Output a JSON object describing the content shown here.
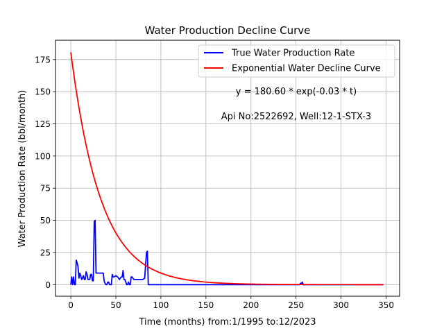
{
  "chart_data": {
    "type": "line",
    "title": "Water Production Decline Curve",
    "xlabel": "Time (months) from:1/1995 to:12/2023",
    "ylabel": "Water Production Rate (bbl/month)",
    "xlim": [
      -17,
      365
    ],
    "ylim": [
      -9,
      190
    ],
    "xticks": [
      0,
      50,
      100,
      150,
      200,
      250,
      300,
      350
    ],
    "yticks": [
      0,
      25,
      50,
      75,
      100,
      125,
      150,
      175
    ],
    "grid": true,
    "legend_position": "top-right",
    "annotations": [
      "y = 180.60 * exp(-0.03 * t)",
      "Api No:2522692, Well:12-1-STX-3"
    ],
    "series": [
      {
        "name": "True Water Production Rate",
        "color": "#0000ff",
        "x": [
          0,
          1,
          2,
          3,
          4,
          5,
          6,
          7,
          8,
          9,
          10,
          11,
          12,
          13,
          14,
          15,
          16,
          17,
          18,
          19,
          20,
          21,
          22,
          23,
          24,
          25,
          26,
          27,
          28,
          29,
          30,
          32,
          34,
          36,
          37,
          38,
          39,
          40,
          41,
          42,
          43,
          44,
          45,
          46,
          47,
          48,
          50,
          52,
          53,
          54,
          55,
          56,
          57,
          58,
          59,
          60,
          61,
          62,
          63,
          64,
          65,
          66,
          67,
          68,
          69,
          70,
          72,
          74,
          76,
          78,
          80,
          82,
          84,
          85,
          86,
          87,
          88,
          90,
          100,
          120,
          150,
          200,
          250,
          254,
          255,
          256,
          257,
          258,
          259,
          260,
          270,
          300,
          330,
          347
        ],
        "values": [
          0,
          6,
          0,
          6,
          0,
          0,
          19,
          17,
          14,
          5,
          9,
          7,
          4,
          5,
          7,
          4,
          4,
          10,
          8,
          4,
          4,
          4,
          8,
          8,
          3,
          3,
          49,
          50,
          9,
          9,
          9,
          9,
          9,
          9,
          3,
          1,
          0,
          0,
          2,
          2,
          0,
          0,
          0,
          8,
          6,
          6,
          7,
          6,
          5,
          4,
          5,
          6,
          6,
          11,
          4,
          4,
          2,
          0,
          0,
          2,
          0,
          0,
          6,
          6,
          5,
          4,
          4,
          4,
          4,
          4,
          4,
          5,
          25,
          26,
          0,
          0,
          0,
          0,
          0,
          0,
          0,
          0,
          0,
          0,
          1,
          1,
          2,
          0,
          0,
          0,
          0,
          0,
          0,
          0
        ]
      },
      {
        "name": "Exponential Water Decline Curve",
        "color": "#ff0000",
        "function": {
          "a": 180.6,
          "b": 0.03,
          "x_start": 0,
          "x_end": 347
        }
      }
    ]
  }
}
